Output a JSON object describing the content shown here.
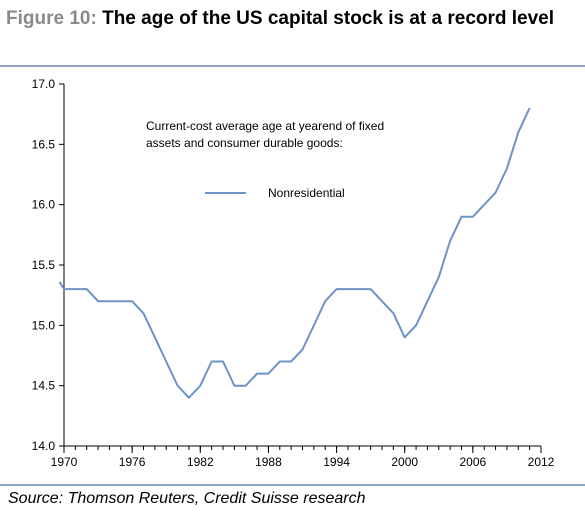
{
  "title": {
    "figure_label": "Figure 10:",
    "text": "The age of the US capital stock is at a record level"
  },
  "source": "Source: Thomson Reuters, Credit Suisse research",
  "colors": {
    "line": "#6d93c8",
    "axis": "#000000",
    "figure_label": "#8a8a8a",
    "rule": "#8fa4c0"
  },
  "chart_data": {
    "type": "line",
    "annotation": "Current-cost average age at yearend of fixed assets and consumer durable goods:",
    "annotation_lines": [
      "Current-cost average age at yearend of fixed",
      "assets and consumer durable goods:"
    ],
    "legend": [
      {
        "name": "Nonresidential",
        "color": "#6d93c8"
      }
    ],
    "ylim": [
      14.0,
      17.0
    ],
    "xlim": [
      1970,
      2012
    ],
    "yticks": [
      "14.0",
      "14.5",
      "15.0",
      "15.5",
      "16.0",
      "16.5",
      "17.0"
    ],
    "xticks": [
      "1970",
      "1976",
      "1982",
      "1988",
      "1994",
      "2000",
      "2006",
      "2012"
    ],
    "grid": false,
    "series": [
      {
        "name": "Nonresidential",
        "x": [
          1969.6,
          1970,
          1971,
          1972,
          1973,
          1974,
          1975,
          1976,
          1977,
          1978,
          1979,
          1980,
          1981,
          1982,
          1983,
          1984,
          1985,
          1986,
          1987,
          1988,
          1989,
          1990,
          1991,
          1992,
          1993,
          1994,
          1995,
          1996,
          1997,
          1998,
          1999,
          2000,
          2001,
          2002,
          2003,
          2004,
          2005,
          2006,
          2007,
          2008,
          2009,
          2010,
          2011
        ],
        "values": [
          15.36,
          15.3,
          15.3,
          15.3,
          15.2,
          15.2,
          15.2,
          15.2,
          15.1,
          14.9,
          14.7,
          14.5,
          14.4,
          14.5,
          14.7,
          14.7,
          14.5,
          14.5,
          14.6,
          14.6,
          14.7,
          14.7,
          14.8,
          15.0,
          15.2,
          15.3,
          15.3,
          15.3,
          15.3,
          15.2,
          15.1,
          14.9,
          15.0,
          15.2,
          15.4,
          15.7,
          15.9,
          15.9,
          16.0,
          16.1,
          16.3,
          16.6,
          16.8
        ]
      }
    ]
  }
}
